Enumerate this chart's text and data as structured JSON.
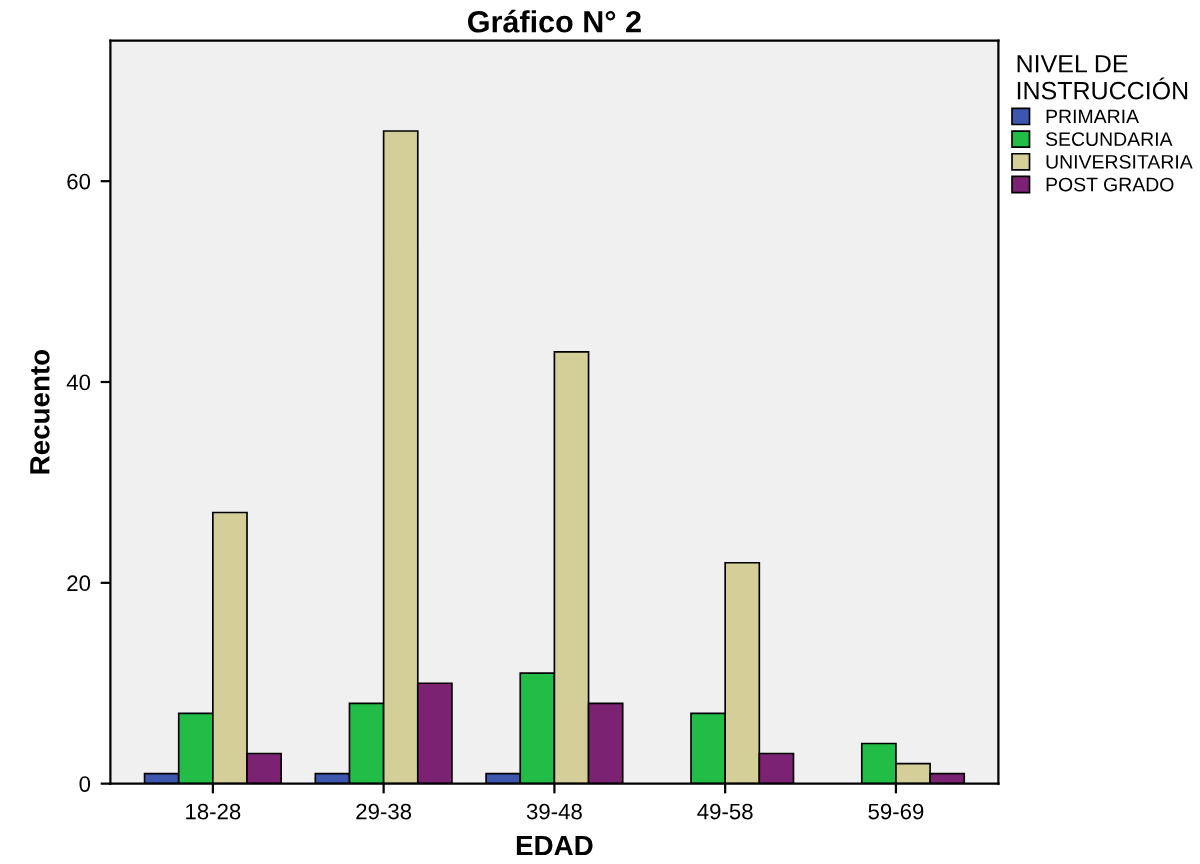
{
  "chart_data": {
    "type": "bar",
    "title": "Gráfico N° 2",
    "xlabel": "EDAD",
    "ylabel": "Recuento",
    "legend_title": "NIVEL DE\nINSTRUCCIÓN",
    "categories": [
      "18-28",
      "29-38",
      "39-48",
      "49-58",
      "59-69"
    ],
    "series": [
      {
        "name": "PRIMARIA",
        "color": "#3d56ae",
        "values": [
          1,
          1,
          1,
          null,
          null
        ]
      },
      {
        "name": "SECUNDARIA",
        "color": "#21bd46",
        "values": [
          7,
          8,
          11,
          7,
          4
        ]
      },
      {
        "name": "UNIVERSITARIA",
        "color": "#d4cf98",
        "values": [
          27,
          65,
          43,
          22,
          2
        ]
      },
      {
        "name": "POST GRADO",
        "color": "#7b2372",
        "values": [
          3,
          10,
          8,
          3,
          1
        ]
      }
    ],
    "ylim": [
      0,
      74
    ],
    "yticks": [
      0,
      20,
      40,
      60
    ],
    "grid": false,
    "legend": "top right"
  }
}
